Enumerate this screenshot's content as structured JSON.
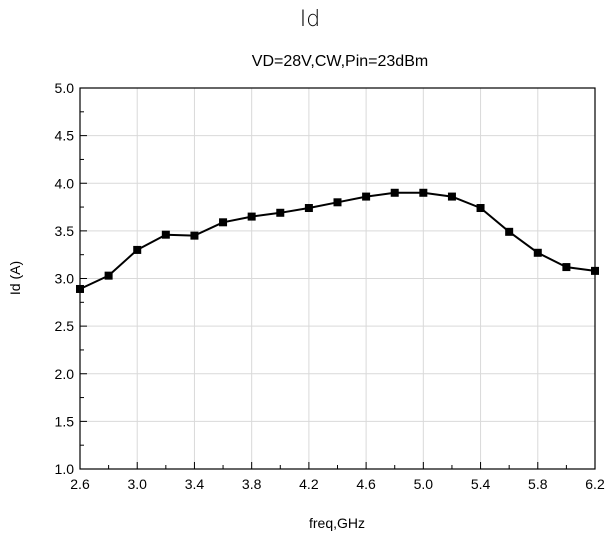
{
  "chart_data": {
    "type": "line",
    "title": "Id",
    "subtitle": "VD=28V,CW,Pin=23dBm",
    "xlabel": "freq,GHz",
    "ylabel": "Id (A)",
    "xlim": [
      2.6,
      6.2
    ],
    "ylim": [
      1.0,
      5.0
    ],
    "xticks": [
      "2.6",
      "3.0",
      "3.4",
      "3.8",
      "4.2",
      "4.6",
      "5.0",
      "5.4",
      "5.8",
      "6.2"
    ],
    "yticks": [
      "1.0",
      "1.5",
      "2.0",
      "2.5",
      "3.0",
      "3.5",
      "4.0",
      "4.5",
      "5.0"
    ],
    "grid": true,
    "marker": "square",
    "line_color": "#000000",
    "series": [
      {
        "x": [
          2.6,
          2.8,
          3.0,
          3.2,
          3.4,
          3.6,
          3.8,
          4.0,
          4.2,
          4.4,
          4.6,
          4.8,
          5.0,
          5.2,
          5.4,
          5.6,
          5.8,
          6.0,
          6.2
        ],
        "values": [
          2.89,
          3.03,
          3.3,
          3.46,
          3.45,
          3.59,
          3.65,
          3.69,
          3.74,
          3.8,
          3.86,
          3.9,
          3.9,
          3.86,
          3.74,
          3.49,
          3.27,
          3.12,
          3.08
        ]
      }
    ]
  }
}
